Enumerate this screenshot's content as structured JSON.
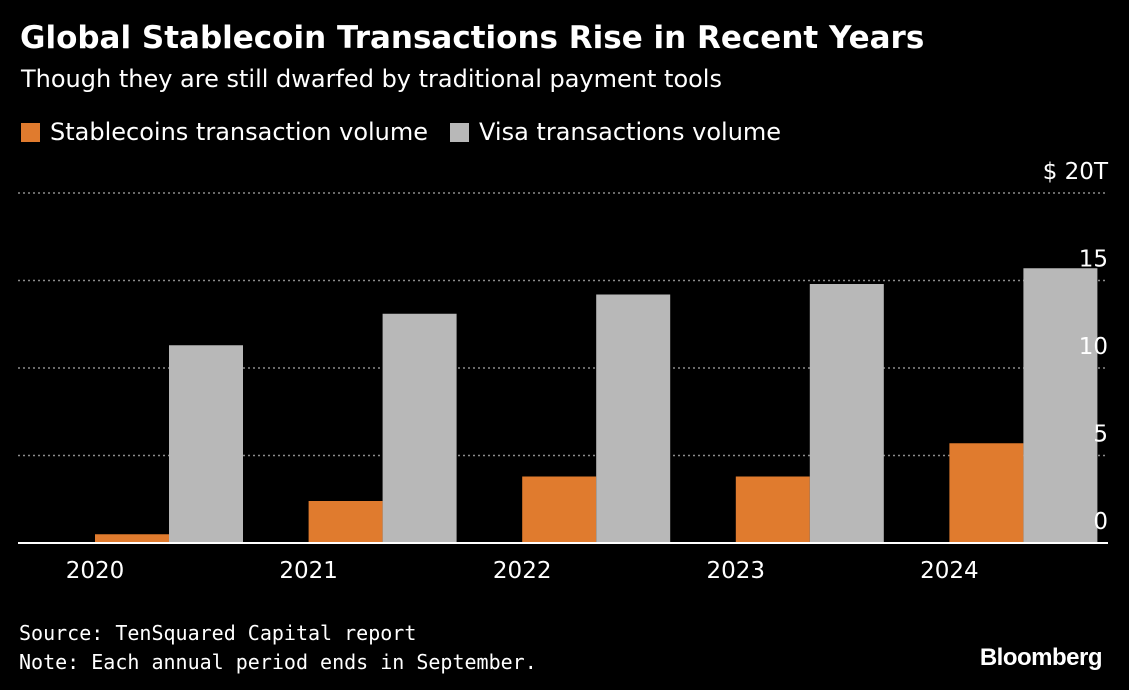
{
  "chart_data": {
    "type": "bar",
    "title": "Global Stablecoin Transactions Rise in Recent Years",
    "subtitle": "Though they are still dwarfed by traditional payment tools",
    "categories": [
      "2020",
      "2021",
      "2022",
      "2023",
      "2024"
    ],
    "series": [
      {
        "name": "Stablecoins transaction volume",
        "color": "#e07b2e",
        "values": [
          0.5,
          2.4,
          3.8,
          3.8,
          5.7
        ]
      },
      {
        "name": "Visa transactions volume",
        "color": "#b8b8b8",
        "values": [
          11.3,
          13.1,
          14.2,
          14.8,
          15.7
        ]
      }
    ],
    "y_ticks": [
      "0",
      "5",
      "10",
      "15",
      "$ 20T"
    ],
    "y_tick_values": [
      0,
      5,
      10,
      15,
      20
    ],
    "ylim": [
      0,
      20
    ],
    "xlabel": "",
    "ylabel": "",
    "grid": true,
    "legend_position": "top-left"
  },
  "footer": {
    "source": "Source: TenSquared Capital report",
    "note": "Note: Each annual period ends in September."
  },
  "brand": {
    "logo_text": "Bloomberg"
  },
  "colors": {
    "background": "#000000",
    "text": "#ffffff",
    "grid": "#8c8c8c",
    "axis": "#ffffff"
  }
}
